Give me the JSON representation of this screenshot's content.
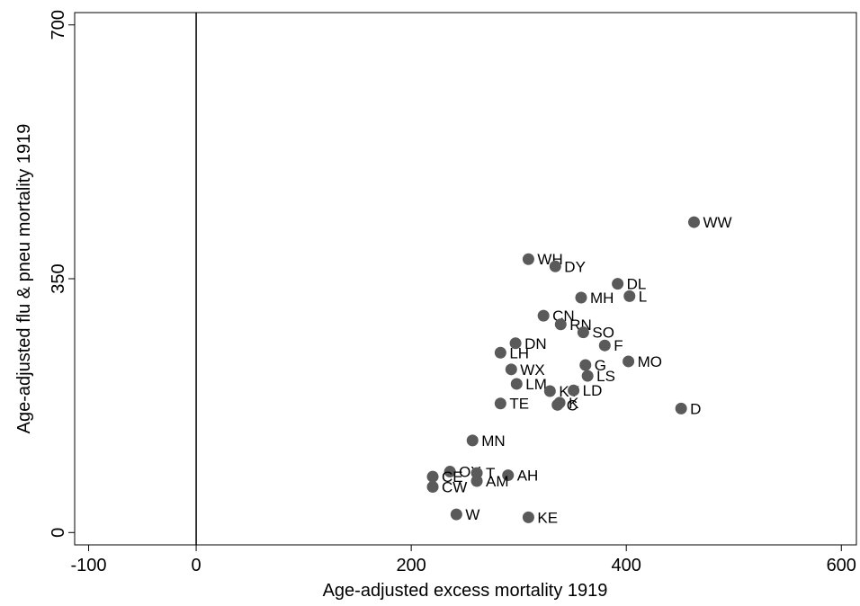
{
  "chart_data": {
    "type": "scatter",
    "x_label": "Age-adjusted excess mortality 1919",
    "y_label": "Age-adjusted flu & pneu mortality 1919",
    "xlim": [
      -113,
      614
    ],
    "ylim": [
      -17,
      717
    ],
    "xticks": [
      -100,
      0,
      200,
      400,
      600
    ],
    "yticks": [
      0,
      350,
      700
    ],
    "reference_line_x": 0,
    "color": "#5a5a5a",
    "labels": [
      "WW",
      "WH",
      "DY",
      "DL",
      "L",
      "MH",
      "CN",
      "RN",
      "SO",
      "F",
      "DN",
      "LH",
      "MO",
      "G",
      "WX",
      "LS",
      "LM",
      "KY",
      "LD",
      "TE",
      "C",
      "K",
      "D",
      "MN",
      "OY",
      "T",
      "AH",
      "CE",
      "AM",
      "CW",
      "W",
      "KE"
    ],
    "x": [
      463,
      309,
      334,
      392,
      403,
      358,
      323,
      339,
      360,
      380,
      297,
      283,
      402,
      362,
      293,
      364,
      298,
      329,
      351,
      283,
      336,
      338,
      451,
      257,
      236,
      261,
      290,
      220,
      261,
      220,
      242,
      309
    ],
    "values": [
      428,
      377,
      367,
      343,
      326,
      324,
      299,
      287,
      276,
      258,
      261,
      248,
      236,
      231,
      225,
      216,
      205,
      195,
      196,
      178,
      176,
      179,
      171,
      127,
      84,
      82,
      79,
      77,
      71,
      63,
      25,
      21
    ]
  }
}
